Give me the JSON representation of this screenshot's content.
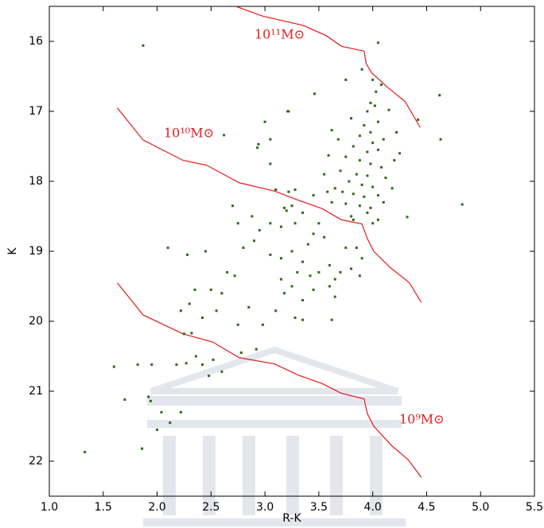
{
  "chart_data": {
    "type": "scatter",
    "xlabel": "R-K",
    "ylabel": "K",
    "xlim": [
      1.0,
      5.5
    ],
    "ylim": [
      15.5,
      22.5
    ],
    "y_inverted": true,
    "xticks": [
      {
        "value": 1.0,
        "label": "1.0"
      },
      1.5,
      {
        "value": 2.0,
        "label": "2.0"
      },
      2.5,
      {
        "value": 3.0,
        "label": "3.0"
      },
      3.5,
      {
        "value": 4.0,
        "label": "4.0"
      },
      4.5,
      {
        "value": 5.0,
        "label": "5.0"
      },
      5.5
    ],
    "yticks": [
      16,
      17,
      18,
      19,
      20,
      21,
      22
    ],
    "points": {
      "color": "#2d6a12",
      "x": [
        1.87,
        4.05,
        3.9,
        4.62,
        4.63,
        4.83,
        4.42,
        4.32,
        2.62,
        2.93,
        2.94,
        3.22,
        3.21,
        3.46,
        3.62,
        3.59,
        3.05,
        3.05,
        3.0,
        3.75,
        4.0,
        4.03,
        4.08,
        3.98,
        4.02,
        3.95,
        3.8,
        3.92,
        4.05,
        3.98,
        3.88,
        4.0,
        4.1,
        3.82,
        3.95,
        4.05,
        3.75,
        3.88,
        3.98,
        4.08,
        3.7,
        3.85,
        3.95,
        4.12,
        3.78,
        3.9,
        4.0,
        3.65,
        3.72,
        3.82,
        3.92,
        4.05,
        3.62,
        3.75,
        3.88,
        3.98,
        3.8,
        3.82,
        3.95,
        4.1,
        4.2,
        4.22,
        4.15,
        4.25,
        4.18,
        3.68,
        3.55,
        3.58,
        3.5,
        3.45,
        3.1,
        3.22,
        3.28,
        3.18,
        3.2,
        3.25,
        3.28,
        3.15,
        3.05,
        2.95,
        2.88,
        2.7,
        2.75,
        2.9,
        3.05,
        3.15,
        3.25,
        3.35,
        3.4,
        3.55,
        3.6,
        3.65,
        3.5,
        3.42,
        3.3,
        3.25,
        3.15,
        3.18,
        3.35,
        3.45,
        3.6,
        3.65,
        3.7,
        3.8,
        3.88,
        3.9,
        3.85,
        3.75,
        3.1,
        3.28,
        3.35,
        3.62,
        2.98,
        2.75,
        2.85,
        2.65,
        2.72,
        2.8,
        2.6,
        2.5,
        2.42,
        2.55,
        2.35,
        2.3,
        2.22,
        2.28,
        2.45,
        2.1,
        2.32,
        2.25,
        2.36,
        2.52,
        2.42,
        2.48,
        2.6,
        2.78,
        2.92,
        2.18,
        2.27,
        1.95,
        1.82,
        1.6,
        1.7,
        1.92,
        1.94,
        2.04,
        2.22,
        2.12,
        2.0,
        1.86,
        1.33,
        4.0,
        4.05,
        3.45,
        3.35
      ],
      "y": [
        16.06,
        16.02,
        16.4,
        16.77,
        17.4,
        18.33,
        17.12,
        18.51,
        17.34,
        17.52,
        17.47,
        17.0,
        17.0,
        16.75,
        17.27,
        17.63,
        17.4,
        17.75,
        17.15,
        16.55,
        16.55,
        16.72,
        16.62,
        16.88,
        16.92,
        17.0,
        17.1,
        17.2,
        17.15,
        17.3,
        17.35,
        17.45,
        17.4,
        17.5,
        17.58,
        17.55,
        17.65,
        17.7,
        17.75,
        17.8,
        17.85,
        17.9,
        17.92,
        17.95,
        18.0,
        18.05,
        18.08,
        18.1,
        18.15,
        18.18,
        18.22,
        18.2,
        18.3,
        18.32,
        18.35,
        18.38,
        18.5,
        18.55,
        18.45,
        18.3,
        17.7,
        17.3,
        16.98,
        17.6,
        18.1,
        17.4,
        17.9,
        18.15,
        18.6,
        18.75,
        18.12,
        18.15,
        18.12,
        18.38,
        18.42,
        18.35,
        18.6,
        18.65,
        18.6,
        18.7,
        18.5,
        18.35,
        18.6,
        18.85,
        19.05,
        19.1,
        19.0,
        19.15,
        18.9,
        18.8,
        19.2,
        19.4,
        19.3,
        19.35,
        19.3,
        19.5,
        19.4,
        19.6,
        19.7,
        19.55,
        19.5,
        19.65,
        19.3,
        19.25,
        19.35,
        19.1,
        18.95,
        18.95,
        19.85,
        19.95,
        19.98,
        19.98,
        20.05,
        20.05,
        19.8,
        19.3,
        19.35,
        18.95,
        19.6,
        19.55,
        19.95,
        19.85,
        19.55,
        19.75,
        19.85,
        19.05,
        19.0,
        18.95,
        20.17,
        20.18,
        20.5,
        20.55,
        20.62,
        20.78,
        20.72,
        20.45,
        20.4,
        20.62,
        20.6,
        20.62,
        20.62,
        20.65,
        21.12,
        21.08,
        21.14,
        21.3,
        21.3,
        21.45,
        21.55,
        21.82,
        21.87,
        18.6,
        18.55,
        18.2,
        18.45
      ]
    },
    "lines": [
      {
        "name": "10¹¹M⊙",
        "color": "#e41a1c",
        "x": [
          2.73,
          2.98,
          3.35,
          3.57,
          3.71,
          3.92,
          3.94,
          3.99,
          4.14,
          4.3,
          4.44
        ],
        "y": [
          15.5,
          15.64,
          15.77,
          15.92,
          16.07,
          16.14,
          16.32,
          16.45,
          16.66,
          16.86,
          17.23
        ]
      },
      {
        "name": "10¹⁰M⊙",
        "color": "#e41a1c",
        "x": [
          1.63,
          1.87,
          2.24,
          2.46,
          2.76,
          3.09,
          3.31,
          3.53,
          3.71,
          3.9,
          3.95,
          4.01,
          4.16,
          4.34,
          4.45
        ],
        "y": [
          16.95,
          17.41,
          17.7,
          17.77,
          18.02,
          18.14,
          18.27,
          18.39,
          18.55,
          18.61,
          18.82,
          19.0,
          19.23,
          19.45,
          19.73
        ]
      },
      {
        "name": "10⁹M⊙",
        "color": "#e41a1c",
        "x": [
          1.63,
          1.87,
          2.24,
          2.52,
          2.76,
          3.09,
          3.31,
          3.53,
          3.71,
          3.92,
          3.95,
          4.01,
          4.17,
          4.33,
          4.45
        ],
        "y": [
          19.45,
          19.91,
          20.18,
          20.3,
          20.52,
          20.61,
          20.77,
          20.89,
          21.03,
          21.11,
          21.32,
          21.5,
          21.77,
          21.98,
          22.23
        ]
      }
    ]
  }
}
